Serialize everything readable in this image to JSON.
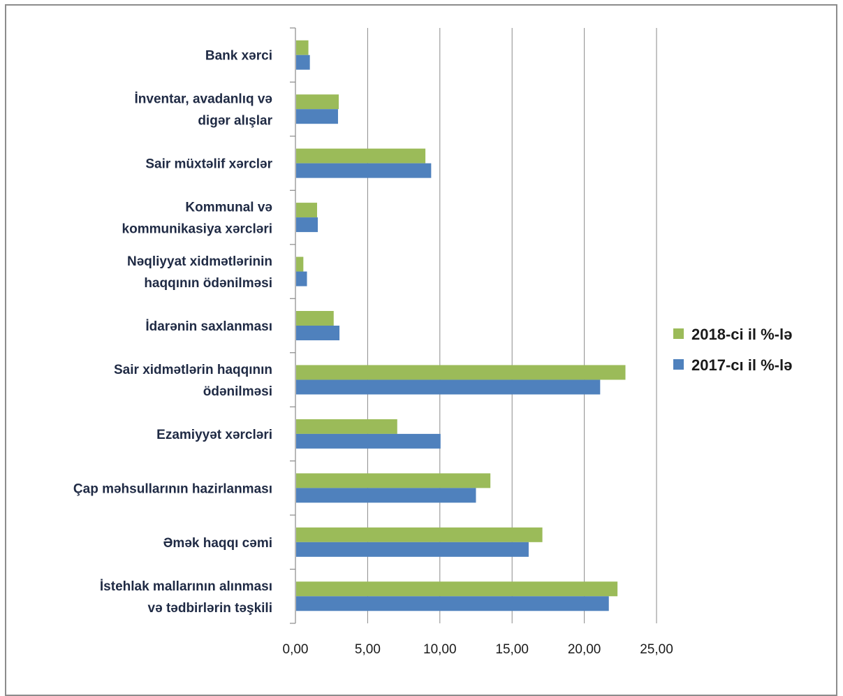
{
  "chart_data": {
    "type": "bar",
    "orientation": "horizontal",
    "categories": [
      [
        "Bank xərci"
      ],
      [
        "İnventar, avadanlıq və",
        "digər alışlar"
      ],
      [
        "Sair müxtəlif xərclər"
      ],
      [
        "Kommunal və",
        "kommunikasiya xərcləri"
      ],
      [
        "Nəqliyyat xidmətlərinin",
        "haqqının ödənilməsi"
      ],
      [
        "İdarənin saxlanması"
      ],
      [
        "Sair xidmətlərin haqqının",
        "ödənilməsi"
      ],
      [
        "Ezamiyyət xərcləri"
      ],
      [
        "Çap məhsullarının hazirlanması"
      ],
      [
        "Əmək haqqı cəmi"
      ],
      [
        "İstehlak mallarının alınması",
        "və tədbirlərin təşkili"
      ]
    ],
    "series": [
      {
        "name": "2018-ci il %-lə",
        "color": "#9bbb59",
        "values": [
          0.85,
          2.95,
          8.95,
          1.45,
          0.5,
          2.6,
          22.8,
          7.0,
          13.45,
          17.05,
          22.25
        ]
      },
      {
        "name": "2017-cı il  %-lə",
        "color": "#4f81bd",
        "values": [
          0.95,
          2.9,
          9.35,
          1.5,
          0.75,
          3.0,
          21.05,
          10.0,
          12.45,
          16.1,
          21.65
        ]
      }
    ],
    "xlim": [
      0,
      25
    ],
    "xticks": [
      "0,00",
      "5,00",
      "10,00",
      "15,00",
      "20,00",
      "25,00"
    ],
    "grid": true,
    "legend": "right"
  }
}
